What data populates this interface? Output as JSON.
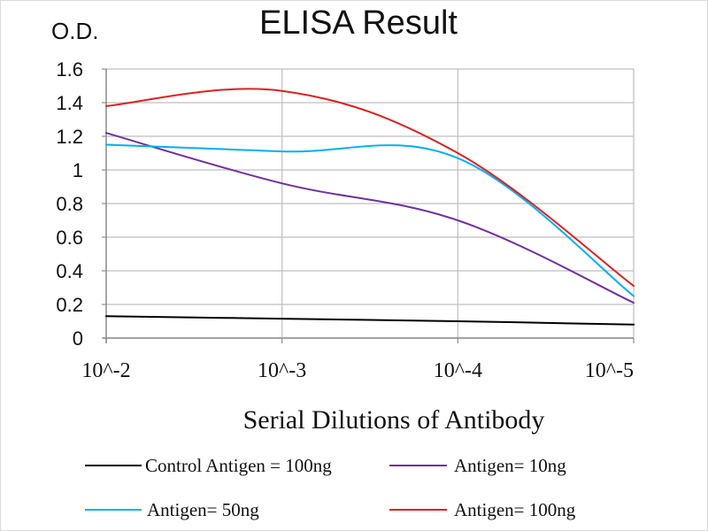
{
  "chart_data": {
    "type": "line",
    "title": "ELISA Result",
    "ylabel": "O.D.",
    "xlabel": "Serial Dilutions  of Antibody",
    "categories": [
      "10^-2",
      "10^-3",
      "10^-4",
      "10^-5"
    ],
    "y_ticks": [
      "0",
      "0.2",
      "0.4",
      "0.6",
      "0.8",
      "1",
      "1.2",
      "1.4",
      "1.6"
    ],
    "ylim": [
      0,
      1.6
    ],
    "grid": true,
    "legend_position": "bottom",
    "series": [
      {
        "name": "Control Antigen = 100ng",
        "color": "#000000",
        "points": [
          {
            "x": "10^-2",
            "y": 0.13
          },
          {
            "x": "10^-3",
            "y": 0.115
          },
          {
            "x": "10^-4",
            "y": 0.1
          },
          {
            "x": "10^-5",
            "y": 0.08
          }
        ]
      },
      {
        "name": "Antigen= 10ng",
        "color": "#7030A0",
        "points": [
          {
            "x": "10^-2",
            "y": 1.22
          },
          {
            "x": "10^-3",
            "y": 0.92
          },
          {
            "x": "10^-4",
            "y": 0.7
          },
          {
            "x": "10^-5",
            "y": 0.21
          }
        ]
      },
      {
        "name": "Antigen= 50ng",
        "color": "#00B0F0",
        "points": [
          {
            "x": "10^-2",
            "y": 1.15
          },
          {
            "x": "10^-3",
            "y": 1.11
          },
          {
            "x": "10^-4",
            "y": 1.07
          },
          {
            "x": "10^-5",
            "y": 0.25
          }
        ]
      },
      {
        "name": "Antigen= 100ng",
        "color": "#E02020",
        "points": [
          {
            "x": "10^-2",
            "y": 1.38
          },
          {
            "x": "10^-3",
            "y": 1.47
          },
          {
            "x": "10^-4",
            "y": 1.1
          },
          {
            "x": "10^-5",
            "y": 0.31
          }
        ]
      }
    ]
  }
}
